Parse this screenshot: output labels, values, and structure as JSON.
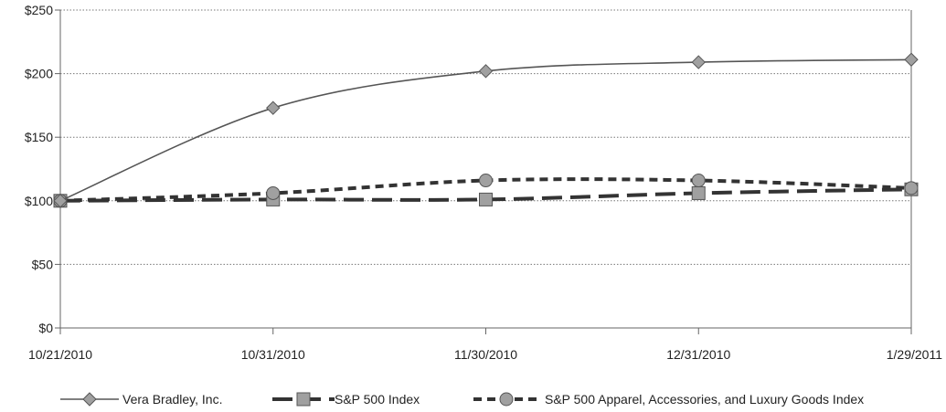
{
  "chart_data": {
    "type": "line",
    "title": "",
    "xlabel": "",
    "ylabel": "",
    "categories": [
      "10/21/2010",
      "10/31/2010",
      "11/30/2010",
      "12/31/2010",
      "1/29/2011"
    ],
    "ylim": [
      0,
      250
    ],
    "yticks": [
      0,
      50,
      100,
      150,
      200,
      250
    ],
    "ytick_labels": [
      "$0",
      "$50",
      "$100",
      "$150",
      "$200",
      "$250"
    ],
    "grid": "horizontal dotted",
    "legend_position": "bottom",
    "series": [
      {
        "name": "Vera Bradley, Inc.",
        "values": [
          100,
          173,
          202,
          209,
          211
        ],
        "color": "#555555",
        "marker": "diamond",
        "line": "solid"
      },
      {
        "name": "S&P 500 Index",
        "values": [
          100,
          101,
          101,
          106,
          109
        ],
        "color": "#333333",
        "marker": "square",
        "line": "long-dash"
      },
      {
        "name": "S&P 500 Apparel, Accessories, and Luxury Goods Index",
        "values": [
          100,
          106,
          116,
          116,
          110
        ],
        "color": "#333333",
        "marker": "circle",
        "line": "short-dash"
      }
    ]
  }
}
